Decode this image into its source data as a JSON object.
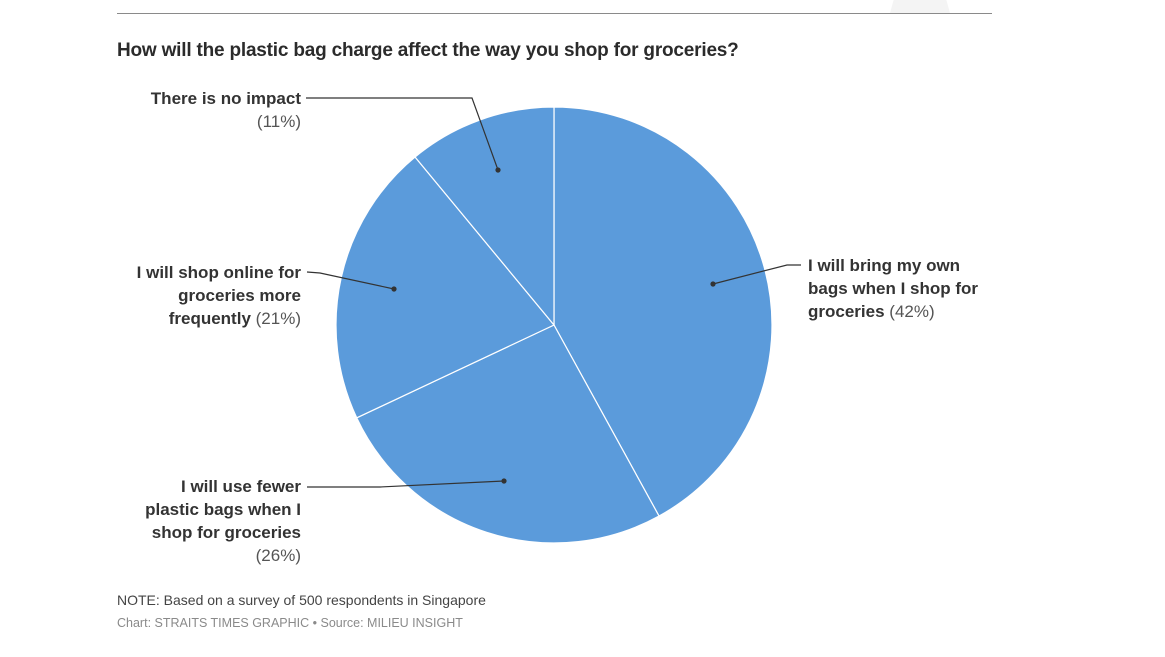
{
  "title": "How will the plastic bag charge affect the way you shop for groceries?",
  "slices": [
    {
      "name": "I will bring my own bags when I shop for groceries",
      "lines": [
        "I will bring my own",
        "bags when I shop for",
        "groceries"
      ],
      "pct_label": "(42%)",
      "value": 42
    },
    {
      "name": "I will use fewer plastic bags when I shop for groceries",
      "lines": [
        "I will use fewer",
        "plastic bags when I",
        "shop for groceries"
      ],
      "pct_label": "(26%)",
      "value": 26
    },
    {
      "name": "I will shop online for groceries more frequently",
      "lines": [
        "I will shop online for",
        "groceries more",
        "frequently"
      ],
      "pct_label": "(21%)",
      "value": 21
    },
    {
      "name": "There is no impact",
      "lines": [
        "There is no impact"
      ],
      "pct_label": "(11%)",
      "value": 11
    }
  ],
  "footer": {
    "note": "NOTE: Based on a survey of 500 respondents in Singapore",
    "credit": "Chart: STRAITS TIMES GRAPHIC • Source: MILIEU INSIGHT"
  },
  "colors": {
    "slice": "#5b9bdb",
    "separator": "#ffffff",
    "leader": "#333333"
  },
  "chart_data": {
    "type": "pie",
    "title": "How will the plastic bag charge affect the way you shop for groceries?",
    "categories": [
      "I will bring my own bags when I shop for groceries",
      "I will use fewer plastic bags when I shop for groceries",
      "I will shop online for groceries more frequently",
      "There is no impact"
    ],
    "values": [
      42,
      26,
      21,
      11
    ],
    "unit": "%",
    "note": "NOTE: Based on a survey of 500 respondents in Singapore",
    "source": "Chart: STRAITS TIMES GRAPHIC • Source: MILIEU INSIGHT",
    "legend": "none (direct labels with leader lines)"
  }
}
